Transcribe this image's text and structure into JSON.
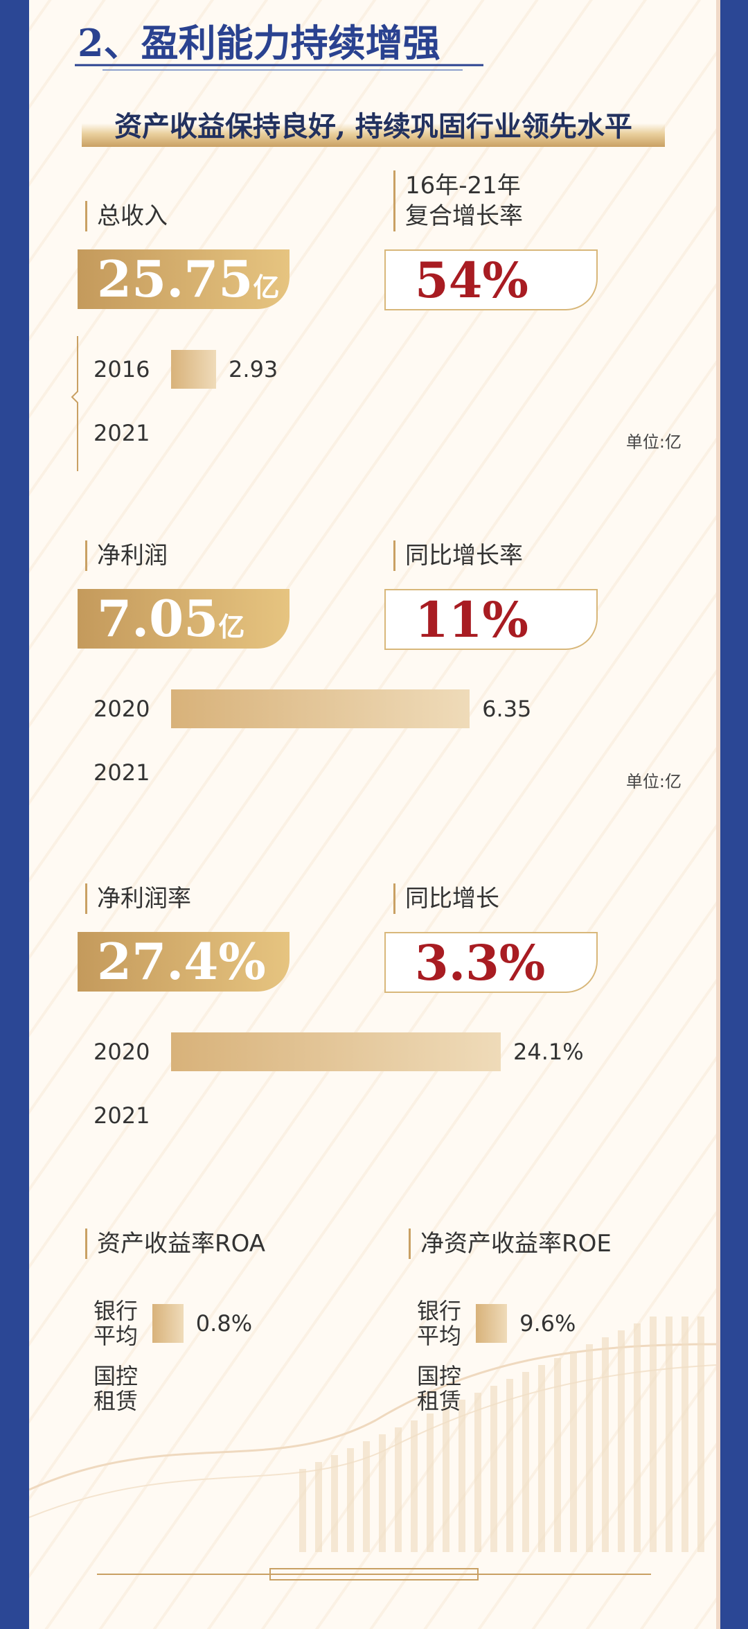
{
  "header": {
    "title": "2、盈利能力持续增强",
    "subtitle": "资产收益保持良好, 持续巩固行业领先水平"
  },
  "sections": [
    {
      "label": "总收入",
      "figure": "25.75",
      "figure_unit": "亿",
      "growth_label": [
        "16年-21年",
        "复合增长率"
      ],
      "growth": "54%",
      "rows": [
        {
          "year": "2016",
          "value": 2.93
        },
        {
          "year": "2021"
        }
      ],
      "unit_note": "单位:亿"
    },
    {
      "label": "净利润",
      "figure": "7.05",
      "figure_unit": "亿",
      "growth_label": [
        "同比增长率"
      ],
      "growth": "11%",
      "rows": [
        {
          "year": "2020",
          "value": 6.35
        },
        {
          "year": "2021"
        }
      ],
      "unit_note": "单位:亿"
    },
    {
      "label": "净利润率",
      "figure": "27.4%",
      "growth_label": [
        "同比增长"
      ],
      "growth": "3.3%",
      "rows": [
        {
          "year": "2020",
          "value": 24.1,
          "value_label": "24.1%"
        },
        {
          "year": "2021"
        }
      ]
    }
  ],
  "returns": [
    {
      "label": "资产收益率ROA",
      "rows": [
        {
          "name": [
            "银行",
            "平均"
          ],
          "value": 0.8,
          "value_label": "0.8%"
        },
        {
          "name": [
            "国控",
            "租赁"
          ]
        }
      ]
    },
    {
      "label": "净资产收益率ROE",
      "rows": [
        {
          "name": [
            "银行",
            "平均"
          ],
          "value": 9.6,
          "value_label": "9.6%"
        },
        {
          "name": [
            "国控",
            "租赁"
          ]
        }
      ]
    }
  ]
}
